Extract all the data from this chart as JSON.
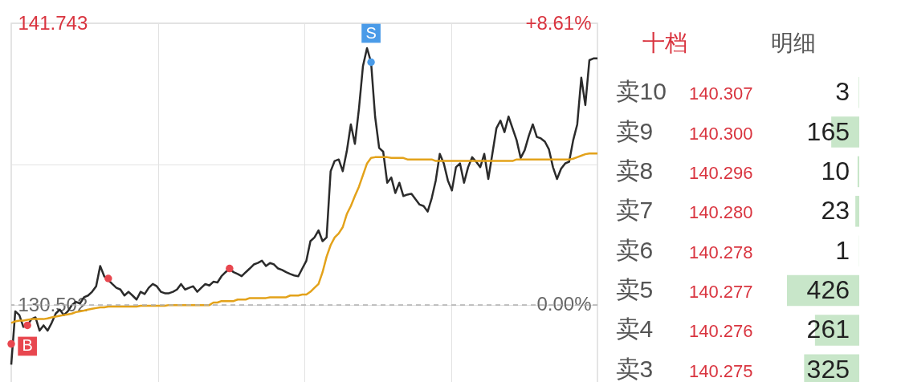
{
  "chart_data": [
    {
      "type": "line",
      "categories": [
        null,
        null,
        null,
        null,
        null,
        null,
        null,
        null,
        null,
        null,
        null,
        null,
        null,
        null,
        null,
        null,
        null,
        null,
        null,
        null,
        null,
        null,
        null,
        null,
        null,
        null,
        null,
        null,
        null,
        null,
        null,
        null,
        null,
        null,
        null,
        null,
        null,
        null,
        null,
        null,
        null,
        null,
        null,
        null,
        null,
        null,
        null,
        null,
        null,
        null,
        null,
        null,
        null,
        null,
        null,
        null,
        null,
        null,
        null,
        null,
        null,
        null,
        null,
        null,
        null,
        null,
        null,
        null,
        null,
        null,
        null,
        null,
        null,
        null,
        null,
        null,
        null,
        null,
        null,
        null,
        null,
        null,
        null,
        null,
        null,
        null,
        null,
        null,
        null,
        null,
        null,
        null,
        null,
        null,
        null,
        null,
        null,
        null,
        null,
        null,
        null,
        null,
        null,
        null,
        null,
        null,
        null,
        null,
        null,
        null,
        null,
        null,
        null,
        null,
        null,
        null,
        null,
        null,
        null,
        null,
        null,
        null,
        null,
        null,
        null,
        null,
        null,
        null,
        null,
        null,
        null,
        null,
        null,
        null,
        null,
        null,
        null,
        null,
        null,
        null,
        null,
        null,
        null,
        null,
        null,
        null
      ],
      "series": [
        {
          "color": "#2b2b2b",
          "values": [
            128.12,
            130.25,
            130.1,
            129.63,
            129.69,
            129.94,
            130.01,
            129.48,
            129.69,
            129.48,
            129.79,
            130.16,
            130.32,
            130.1,
            130.25,
            130.5,
            130.63,
            130.56,
            130.81,
            130.88,
            131.03,
            131.25,
            132.06,
            131.65,
            131.5,
            131.34,
            131.19,
            131.12,
            130.88,
            131.03,
            130.88,
            130.72,
            131.03,
            130.94,
            131.19,
            131.34,
            131.25,
            131.03,
            130.97,
            130.97,
            131.03,
            131.12,
            131.34,
            131.12,
            131.19,
            131.25,
            131.03,
            131.19,
            131.34,
            131.28,
            131.43,
            131.4,
            131.65,
            131.81,
            131.96,
            131.81,
            131.74,
            131.65,
            131.81,
            131.96,
            132.12,
            132.18,
            132.27,
            132.06,
            132.18,
            132.12,
            131.96,
            131.9,
            131.81,
            131.74,
            131.68,
            131.65,
            131.96,
            132.27,
            133.05,
            133.2,
            133.48,
            133.05,
            133.2,
            135.84,
            136.25,
            136.31,
            135.84,
            136.64,
            137.71,
            136.93,
            138.33,
            140.04,
            140.75,
            140.19,
            138.02,
            136.77,
            136.62,
            135.38,
            135.59,
            134.97,
            135.38,
            134.85,
            134.91,
            134.94,
            134.72,
            134.51,
            134.45,
            134.23,
            134.76,
            135.47,
            136.53,
            136.15,
            135.47,
            135.07,
            136.0,
            136.15,
            135.38,
            136.0,
            136.4,
            136.22,
            136.0,
            136.53,
            135.53,
            136.53,
            137.55,
            137.86,
            137.4,
            138.02,
            137.55,
            137.08,
            136.37,
            136.68,
            137.24,
            137.71,
            137.21,
            137.15,
            137.02,
            136.71,
            136.0,
            135.53,
            135.94,
            136.15,
            136.22,
            137.08,
            137.71,
            139.57,
            138.48,
            140.27,
            140.34,
            140.34
          ]
        },
        {
          "color": "#e3a21a",
          "values": [
            129.79,
            129.85,
            129.88,
            129.88,
            129.91,
            129.94,
            129.94,
            129.94,
            129.94,
            129.97,
            130.01,
            130.04,
            130.07,
            130.1,
            130.13,
            130.16,
            130.22,
            130.25,
            130.28,
            130.32,
            130.35,
            130.38,
            130.41,
            130.41,
            130.44,
            130.44,
            130.44,
            130.44,
            130.44,
            130.44,
            130.44,
            130.44,
            130.47,
            130.47,
            130.47,
            130.47,
            130.47,
            130.47,
            130.47,
            130.5,
            130.5,
            130.5,
            130.5,
            130.5,
            130.5,
            130.5,
            130.5,
            130.5,
            130.5,
            130.5,
            130.6,
            130.6,
            130.66,
            130.66,
            130.66,
            130.66,
            130.72,
            130.72,
            130.72,
            130.78,
            130.78,
            130.78,
            130.78,
            130.78,
            130.81,
            130.81,
            130.81,
            130.81,
            130.81,
            130.88,
            130.88,
            130.88,
            130.92,
            130.92,
            131.03,
            131.19,
            131.34,
            131.81,
            132.43,
            132.89,
            133.2,
            133.36,
            133.61,
            134.13,
            134.45,
            134.85,
            135.22,
            135.69,
            136.15,
            136.37,
            136.4,
            136.4,
            136.4,
            136.4,
            136.37,
            136.37,
            136.37,
            136.37,
            136.31,
            136.31,
            136.31,
            136.31,
            136.31,
            136.31,
            136.31,
            136.25,
            136.25,
            136.25,
            136.25,
            136.25,
            136.25,
            136.25,
            136.25,
            136.25,
            136.25,
            136.25,
            136.25,
            136.25,
            136.25,
            136.25,
            136.25,
            136.25,
            136.25,
            136.25,
            136.25,
            136.31,
            136.31,
            136.31,
            136.31,
            136.31,
            136.31,
            136.31,
            136.31,
            136.31,
            136.31,
            136.31,
            136.31,
            136.31,
            136.31,
            136.34,
            136.4,
            136.46,
            136.52,
            136.55,
            136.55,
            136.55
          ]
        },
        {
          "type": "scatter",
          "values": [
            128.95,
            null,
            null,
            null,
            129.69,
            null,
            null,
            null,
            null,
            null,
            null,
            null,
            null,
            null,
            null,
            null,
            null,
            null,
            null,
            null,
            null,
            null,
            null,
            null,
            131.56,
            null,
            null,
            null,
            null,
            null,
            null,
            null,
            null,
            null,
            null,
            null,
            null,
            null,
            null,
            null,
            null,
            null,
            null,
            null,
            null,
            null,
            null,
            null,
            null,
            null,
            null,
            null,
            null,
            null,
            131.96,
            null,
            null,
            null,
            null,
            null,
            null,
            null,
            null,
            null,
            null,
            null,
            null,
            null,
            null,
            null,
            null,
            null,
            null,
            null,
            null,
            null,
            null,
            null,
            null,
            null,
            null,
            null,
            null,
            null,
            null,
            null,
            null,
            null,
            null,
            140.19,
            null,
            null,
            null,
            null,
            null,
            null,
            null,
            null,
            null,
            null,
            null,
            null,
            null,
            null,
            null,
            null,
            null,
            null,
            null,
            null,
            null,
            null,
            null,
            null,
            null,
            null,
            null,
            null,
            null,
            null,
            null,
            null,
            null,
            null,
            null,
            null,
            null,
            null,
            null,
            null,
            null,
            null,
            null,
            null,
            null,
            null,
            null,
            null,
            null,
            null,
            null,
            null,
            null,
            null,
            null,
            null
          ],
          "colors": [
            "#e8474f",
            null,
            null,
            null,
            "#e8474f",
            null,
            null,
            null,
            null,
            null,
            null,
            null,
            null,
            null,
            null,
            null,
            null,
            null,
            null,
            null,
            null,
            null,
            null,
            null,
            "#e8474f",
            null,
            null,
            null,
            null,
            null,
            null,
            null,
            null,
            null,
            null,
            null,
            null,
            null,
            null,
            null,
            null,
            null,
            null,
            null,
            null,
            null,
            null,
            null,
            null,
            null,
            null,
            null,
            null,
            null,
            "#e8474f",
            null,
            null,
            null,
            null,
            null,
            null,
            null,
            null,
            null,
            null,
            null,
            null,
            null,
            null,
            null,
            null,
            null,
            null,
            null,
            null,
            null,
            null,
            null,
            null,
            null,
            null,
            null,
            null,
            null,
            null,
            null,
            null,
            null,
            null,
            "#4a9be8",
            null,
            null,
            null,
            null,
            null,
            null,
            null,
            null,
            null,
            null,
            null,
            null,
            null,
            null,
            null,
            null,
            null,
            null,
            null,
            null,
            null,
            null,
            null,
            null,
            null,
            null,
            null,
            null,
            null,
            null,
            null,
            null,
            null,
            null,
            null,
            null,
            null,
            null,
            null,
            null,
            null,
            null,
            null,
            null,
            null,
            null,
            null,
            null,
            null,
            null,
            null,
            null,
            null,
            null,
            null,
            null
          ],
          "value_labels": [
            null,
            null,
            null,
            null,
            "B",
            null,
            null,
            null,
            null,
            null,
            null,
            null,
            null,
            null,
            null,
            null,
            null,
            null,
            null,
            null,
            null,
            null,
            null,
            null,
            null,
            null,
            null,
            null,
            null,
            null,
            null,
            null,
            null,
            null,
            null,
            null,
            null,
            null,
            null,
            null,
            null,
            null,
            null,
            null,
            null,
            null,
            null,
            null,
            null,
            null,
            null,
            null,
            null,
            null,
            null,
            null,
            null,
            null,
            null,
            null,
            null,
            null,
            null,
            null,
            null,
            null,
            null,
            null,
            null,
            null,
            null,
            null,
            null,
            null,
            null,
            null,
            null,
            null,
            null,
            null,
            null,
            null,
            null,
            null,
            null,
            null,
            null,
            null,
            null,
            "S",
            null,
            null,
            null,
            null,
            null,
            null,
            null,
            null,
            null,
            null,
            null,
            null,
            null,
            null,
            null,
            null,
            null,
            null,
            null,
            null,
            null,
            null,
            null,
            null,
            null,
            null,
            null,
            null,
            null,
            null,
            null,
            null,
            null,
            null,
            null,
            null,
            null,
            null,
            null,
            null,
            null,
            null,
            null,
            null,
            null,
            null,
            null,
            null,
            null,
            null,
            null,
            null,
            null,
            null,
            null,
            null
          ]
        }
      ],
      "ylim": [
        127.27,
        141.743
      ],
      "yticks": [
        141.743,
        {
          "value": 136.12,
          "label": null
        },
        130.502
      ],
      "y2lim": [
        -2.48,
        8.61
      ],
      "y2ticks": [
        {
          "value": 8.61,
          "label": "+8.61%"
        },
        {
          "value": 0,
          "label": "0.00%"
        }
      ],
      "ref_lines": [
        {
          "axis": "y",
          "value": 130.502,
          "line_style": "dashed",
          "color": "#b0b0b0"
        }
      ],
      "grid": true
    },
    {
      "type": "bar",
      "orientation": "horizontal",
      "categories": [
        "卖10",
        "卖9",
        "卖8",
        "卖7",
        "卖6",
        "卖5",
        "卖4",
        "卖3"
      ],
      "values": [
        3,
        165,
        10,
        23,
        1,
        426,
        261,
        325
      ],
      "color": "#c8e6c9",
      "data_labels": true,
      "tick_labels": "y",
      "annotations": [
        "十档",
        "明细",
        "140.307",
        "140.300",
        "140.296",
        "140.280",
        "140.278",
        "140.277",
        "140.276",
        "140.275"
      ]
    }
  ]
}
